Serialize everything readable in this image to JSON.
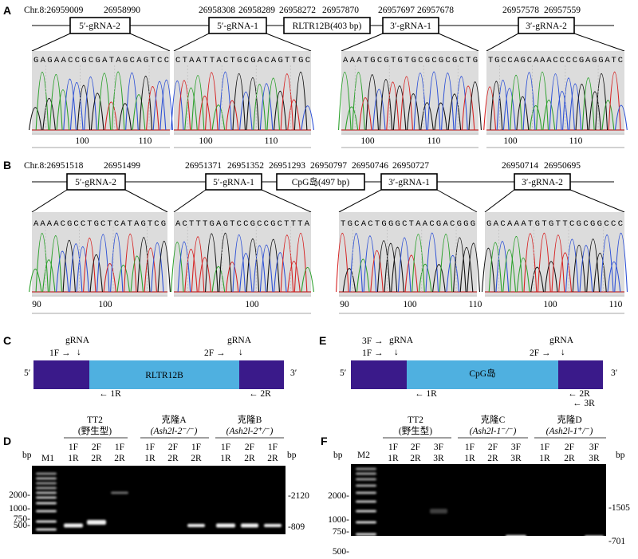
{
  "panels": {
    "A": {
      "letter": "A",
      "chr": "Chr.8:26959009",
      "coords": [
        "26958990",
        "26958308",
        "26958289",
        "26958272",
        "26957870",
        "26957697",
        "26957678",
        "26957578",
        "26957559"
      ],
      "boxes": [
        "5′-gRNA-2",
        "5′-gRNA-1",
        "RLTR12B(403 bp)",
        "3′-gRNA-1",
        "3′-gRNA-2"
      ],
      "sequences": [
        "GAGAACCGCGATAGCAGTCC",
        "CTAATTACTGCGACAGTTGC",
        "AAATGCGTGTGCGCGCGCTG",
        "TGCCAGCAAACCCCGAGGATC"
      ],
      "ticks": [
        [
          "100",
          "110"
        ],
        [
          "100",
          "110"
        ],
        [
          "100",
          "110"
        ],
        [
          "100",
          "110"
        ]
      ]
    },
    "B": {
      "letter": "B",
      "chr": "Chr.8:26951518",
      "coords": [
        "26951499",
        "26951371",
        "26951352",
        "26951293",
        "26950797",
        "26950746",
        "26950727",
        "26950714",
        "26950695"
      ],
      "boxes": [
        "5′-gRNA-2",
        "5′-gRNA-1",
        "CpG岛(497 bp)",
        "3′-gRNA-1",
        "3′-gRNA-2"
      ],
      "sequences": [
        "AAAACGCCTGCTCATAGTCG",
        "ACTTTGAGTCCGCCGCTTTA",
        "TGCACTGGGCTAACGACGGG",
        "GACAAATGTGTTCGCGGCCC"
      ],
      "ticks": [
        [
          "90",
          "100"
        ],
        [
          "100"
        ],
        [
          "90",
          "100",
          "110"
        ],
        [
          "100",
          "110"
        ]
      ]
    },
    "C": {
      "letter": "C",
      "region": "RLTR12B",
      "gRNA": "gRNA",
      "primers": {
        "f1": "1F →",
        "f2": "2F →",
        "r1": "← 1R",
        "r2": "← 2R"
      },
      "end5": "5′",
      "end3": "3′"
    },
    "E": {
      "letter": "E",
      "region": "CpG岛",
      "gRNA": "gRNA",
      "primers": {
        "f3": "3F →",
        "f1": "1F →",
        "f2": "2F →",
        "r1": "← 1R",
        "r2": "← 2R",
        "r3": "← 3R"
      },
      "end5": "5′",
      "end3": "3′"
    },
    "D": {
      "letter": "D",
      "marker": "M1",
      "unit": "bp",
      "groups": [
        {
          "line1": "TT2",
          "line2": "(野生型)"
        },
        {
          "line1": "克隆A",
          "line2": "(Ash2l-2⁻/⁻)"
        },
        {
          "line1": "克隆B",
          "line2": "(Ash2l-2⁺/⁻)"
        }
      ],
      "lanes": [
        [
          "1F",
          "1R"
        ],
        [
          "2F",
          "2R"
        ],
        [
          "1F",
          "2R"
        ]
      ],
      "ladder": [
        "2000-",
        "1000-",
        "750-",
        "500-"
      ],
      "sizes": [
        "-2120",
        "-809"
      ]
    },
    "F": {
      "letter": "F",
      "marker": "M2",
      "unit": "bp",
      "groups": [
        {
          "line1": "TT2",
          "line2": "(野生型)"
        },
        {
          "line1": "克隆C",
          "line2": "(Ash2l-1⁻/⁻)"
        },
        {
          "line1": "克隆D",
          "line2": "(Ash2l-1⁺/⁻)"
        }
      ],
      "lanes": [
        [
          "1F",
          "1R"
        ],
        [
          "2F",
          "2R"
        ],
        [
          "3F",
          "3R"
        ]
      ],
      "ladder": [
        "2000-",
        "1000-",
        "750-",
        "500-"
      ],
      "sizes": [
        "-1505",
        "-701"
      ]
    }
  }
}
